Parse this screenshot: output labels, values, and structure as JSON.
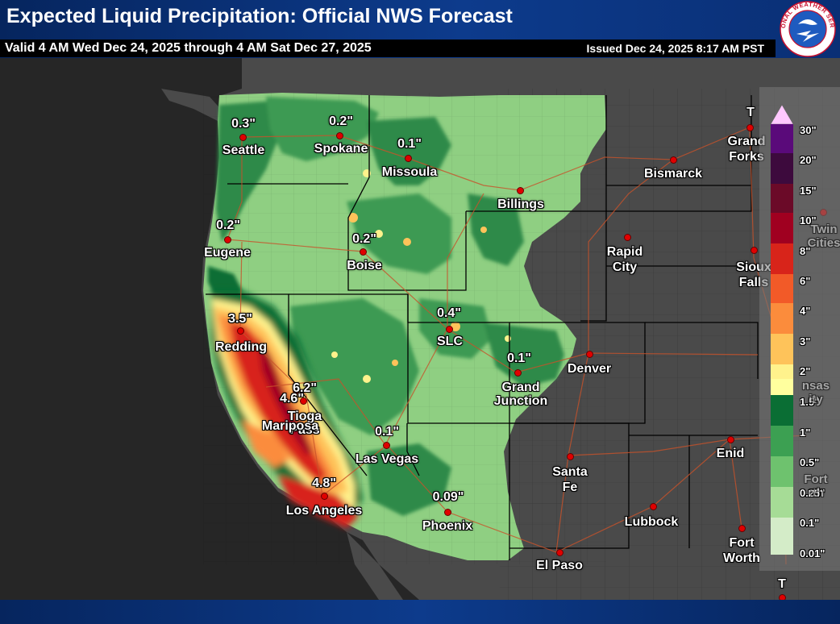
{
  "header": {
    "title": "Expected Liquid Precipitation: Official NWS Forecast",
    "valid": "Valid 4 AM Wed Dec 24, 2025 through 4 AM Sat Dec 27, 2025",
    "issued": "Issued Dec 24, 2025 8:17 AM PST",
    "logo_text": "NATIONAL WEATHER SERVICE"
  },
  "cities": [
    {
      "name": "Seattle",
      "amount": "0.3\""
    },
    {
      "name": "Spokane",
      "amount": "0.2\""
    },
    {
      "name": "Missoula",
      "amount": "0.1\""
    },
    {
      "name": "Eugene",
      "amount": "0.2\""
    },
    {
      "name": "Boise",
      "amount": "0.2\""
    },
    {
      "name": "Redding",
      "amount": "3.5\""
    },
    {
      "name": "SLC",
      "amount": "0.4\""
    },
    {
      "name": "Grand Junction",
      "amount": "0.1\""
    },
    {
      "name": "Tioga Pass",
      "amount": "6.2\""
    },
    {
      "name": "Mariposa",
      "amount": "4.6\""
    },
    {
      "name": "Las Vegas",
      "amount": "0.1\""
    },
    {
      "name": "Los Angeles",
      "amount": "4.8\""
    },
    {
      "name": "Phoenix",
      "amount": "0.09\""
    },
    {
      "name": "Billings",
      "amount": ""
    },
    {
      "name": "Bismarck",
      "amount": ""
    },
    {
      "name": "Grand Forks",
      "amount": "T"
    },
    {
      "name": "Rapid City",
      "amount": ""
    },
    {
      "name": "Sioux Falls",
      "amount": ""
    },
    {
      "name": "Twin Cities",
      "amount": ""
    },
    {
      "name": "Denver",
      "amount": ""
    },
    {
      "name": "Santa Fe",
      "amount": ""
    },
    {
      "name": "Lubbock",
      "amount": ""
    },
    {
      "name": "Enid",
      "amount": ""
    },
    {
      "name": "Fort Worth",
      "amount": ""
    },
    {
      "name": "El Paso",
      "amount": ""
    },
    {
      "name": "",
      "amount": "T"
    }
  ],
  "faded_labels": [
    "Twin Cities",
    "nsas ity",
    "Fort rth"
  ],
  "legend": {
    "labels": [
      "30\"",
      "20\"",
      "15\"",
      "10\"",
      "8\"",
      "6\"",
      "4\"",
      "3\"",
      "2\"",
      "1.5\"",
      "1\"",
      "0.5\"",
      "0.25\"",
      "0.1\"",
      "0.01\""
    ],
    "colors": [
      "#ffc8ff",
      "#5a0a7a",
      "#3d0a3d",
      "#6b0a28",
      "#a00020",
      "#d8241a",
      "#f25a28",
      "#fb8c3c",
      "#fec35a",
      "#fff28c",
      "#ffff9e",
      "#0a6e34",
      "#3ca052",
      "#6ec26e",
      "#a6dc96",
      "#d4ecc8"
    ]
  }
}
